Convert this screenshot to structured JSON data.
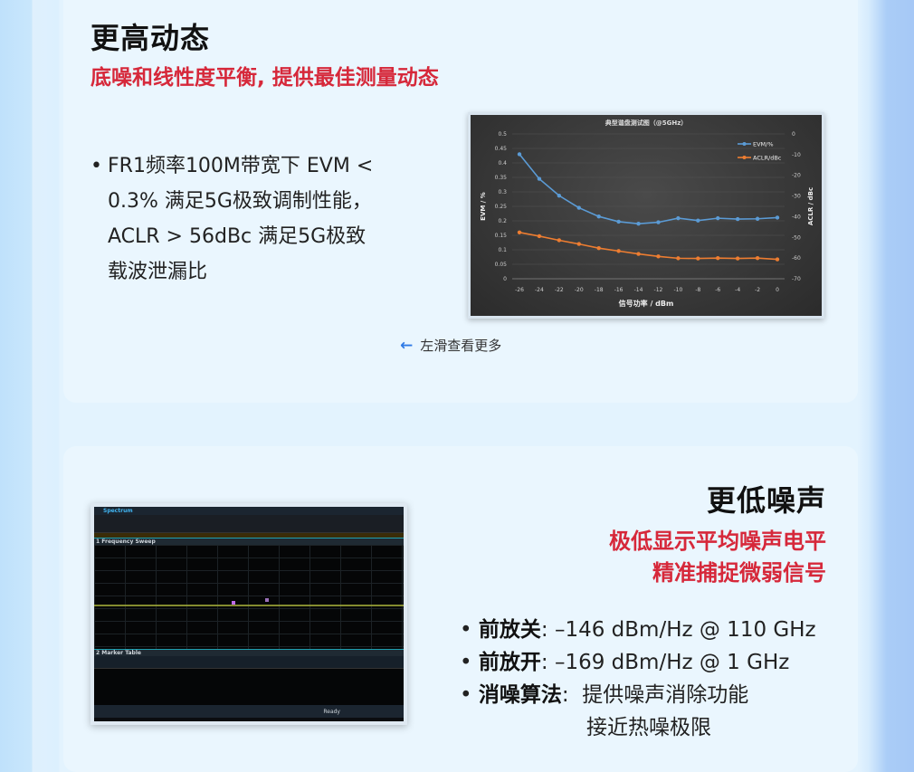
{
  "section1": {
    "title": "更高动态",
    "subtitle": "底噪和线性度平衡, 提供最佳测量动态",
    "bullet_lines": [
      "FR1频率100M带宽下 EVM <",
      "0.3% 满足5G极致调制性能，",
      "ACLR > 56dBc 满足5G极致",
      "载波泄漏比"
    ],
    "swipe_hint": "左滑查看更多",
    "swipe_icon": "arrow-left-icon"
  },
  "chart_data": {
    "type": "line",
    "title": "典型谐盘测试图（@5GHz）",
    "xlabel": "信号功率 / dBm",
    "ylabel": "EVM / %",
    "y2label": "ACLR / dBc",
    "x": [
      -26,
      -24,
      -22,
      -20,
      -18,
      -16,
      -14,
      -12,
      -10,
      -8,
      -6,
      -4,
      -2,
      0
    ],
    "ylim": [
      0,
      0.5
    ],
    "yticks": [
      "0",
      "0.05",
      "0.1",
      "0.15",
      "0.2",
      "0.25",
      "0.3",
      "0.35",
      "0.4",
      "0.45",
      "0.5"
    ],
    "y2lim": [
      -70,
      0
    ],
    "y2ticks": [
      "-70",
      "-60",
      "-50",
      "-40",
      "-30",
      "-20",
      "-10",
      "0"
    ],
    "grid": true,
    "legend": "top-right",
    "series": [
      {
        "name": "EVM/%",
        "axis": "left",
        "color": "#5b9bd5",
        "values": [
          0.43,
          0.345,
          0.287,
          0.245,
          0.215,
          0.197,
          0.19,
          0.195,
          0.209,
          0.201,
          0.209,
          0.206,
          0.207,
          0.211
        ]
      },
      {
        "name": "ACLR/dBc",
        "axis": "right",
        "color": "#ed7d31",
        "values": [
          -47.6,
          -49.4,
          -51.4,
          -53.2,
          -55.2,
          -56.6,
          -58,
          -59.2,
          -60.1,
          -60.2,
          -60,
          -60.2,
          -60,
          -60.6
        ]
      }
    ]
  },
  "section2": {
    "title": "更低噪声",
    "subtitle_lines": [
      "极低显示平均噪声电平",
      "精准捕捉微弱信号"
    ],
    "bullets": [
      {
        "label": "前放关",
        "value": ": –146 dBm/Hz @ 110 GHz"
      },
      {
        "label": "前放开",
        "value": ": –169 dBm/Hz @ 1 GHz"
      },
      {
        "label": "消噪算法",
        "value": ":  提供噪声消除功能",
        "cont": "接近热噪极限"
      }
    ],
    "screenshot": {
      "tab": "Spectrum",
      "panel1": "1 Frequency Sweep",
      "panel2": "2 Marker Table",
      "status": "Ready"
    }
  }
}
